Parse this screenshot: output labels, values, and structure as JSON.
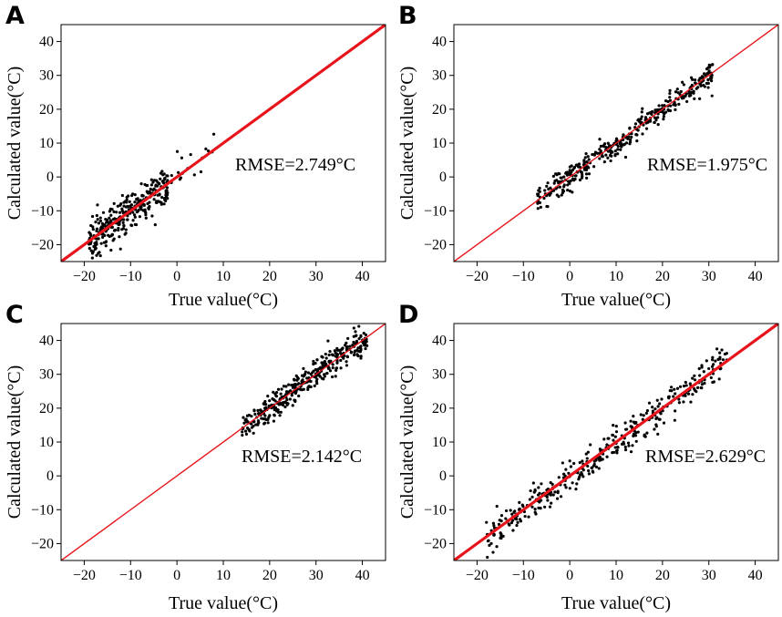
{
  "figure": {
    "panels": [
      {
        "letter": "A",
        "rmse_label": "RMSE=2.749°C",
        "line_style": "thick"
      },
      {
        "letter": "B",
        "rmse_label": "RMSE=1.975°C",
        "line_style": "thin"
      },
      {
        "letter": "C",
        "rmse_label": "RMSE=2.142°C",
        "line_style": "thin"
      },
      {
        "letter": "D",
        "rmse_label": "RMSE=2.629°C",
        "line_style": "thick"
      }
    ]
  },
  "colors": {
    "points": "#000000",
    "line": "#e8141b",
    "axes": "#000000"
  },
  "chart_data": [
    {
      "type": "scatter",
      "panel": "A",
      "title": "",
      "xlabel": "True value(°C)",
      "ylabel": "Calculated value(°C)",
      "xlim": [
        -25,
        45
      ],
      "ylim": [
        -25,
        45
      ],
      "xticks": [
        -20,
        -10,
        0,
        10,
        20,
        30,
        40
      ],
      "yticks": [
        -20,
        -10,
        0,
        10,
        20,
        30,
        40
      ],
      "reference_line": "y = x",
      "annotation": "RMSE=2.749°C",
      "clusters": [
        {
          "x_range": [
            -19,
            -2
          ],
          "n": 320,
          "noise": 2.7
        },
        {
          "x_range": [
            -4,
            8
          ],
          "n": 20,
          "noise": 2.5
        }
      ]
    },
    {
      "type": "scatter",
      "panel": "B",
      "title": "",
      "xlabel": "True value(°C)",
      "ylabel": "Calculated value(°C)",
      "xlim": [
        -25,
        45
      ],
      "ylim": [
        -25,
        45
      ],
      "xticks": [
        -20,
        -10,
        0,
        10,
        20,
        30,
        40
      ],
      "yticks": [
        -20,
        -10,
        0,
        10,
        20,
        30,
        40
      ],
      "reference_line": "y = x",
      "annotation": "RMSE=1.975°C",
      "clusters": [
        {
          "x_range": [
            -7,
            31
          ],
          "n": 380,
          "noise": 1.9
        }
      ]
    },
    {
      "type": "scatter",
      "panel": "C",
      "title": "",
      "xlabel": "True value(°C)",
      "ylabel": "Calculated value(°C)",
      "xlim": [
        -25,
        45
      ],
      "ylim": [
        -25,
        45
      ],
      "xticks": [
        -20,
        -10,
        0,
        10,
        20,
        30,
        40
      ],
      "yticks": [
        -20,
        -10,
        0,
        10,
        20,
        30,
        40
      ],
      "reference_line": "y = x",
      "annotation": "RMSE=2.142°C",
      "clusters": [
        {
          "x_range": [
            14,
            41
          ],
          "n": 360,
          "noise": 2.1
        }
      ]
    },
    {
      "type": "scatter",
      "panel": "D",
      "title": "",
      "xlabel": "True value(°C)",
      "ylabel": "Calculated value(°C)",
      "xlim": [
        -25,
        45
      ],
      "ylim": [
        -25,
        45
      ],
      "xticks": [
        -20,
        -10,
        0,
        10,
        20,
        30,
        40
      ],
      "yticks": [
        -20,
        -10,
        0,
        10,
        20,
        30,
        40
      ],
      "reference_line": "y = x",
      "annotation": "RMSE=2.629°C",
      "clusters": [
        {
          "x_range": [
            -18,
            34
          ],
          "n": 360,
          "noise": 2.6
        }
      ]
    }
  ]
}
